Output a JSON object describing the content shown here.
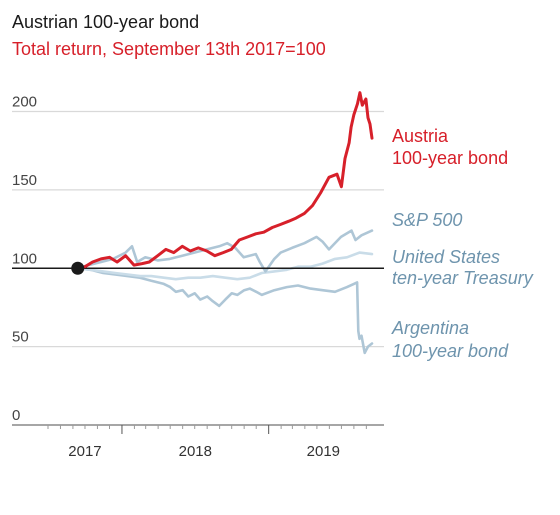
{
  "chart_data": {
    "type": "line",
    "title": "Austrian 100-year bond",
    "subtitle": "Total return, September 13th 2017=100",
    "xlabel": "",
    "ylabel": "",
    "x_ticks": [
      "2017",
      "2018",
      "2019"
    ],
    "y_ticks": [
      0,
      50,
      100,
      150,
      200
    ],
    "ylim": [
      0,
      215
    ],
    "xlim": [
      "2017-07-01",
      "2019-09-30"
    ],
    "baseline": 100,
    "grid": true,
    "legend": "direct labels at right",
    "colors": {
      "austria": "#d7202a",
      "others": "#aec6d6",
      "treasury": "#c9dce8",
      "label_blue": "#6e94ad",
      "baseline": "#1a1a1a",
      "grid": "#d9d9d9"
    },
    "series": [
      {
        "name": "Austria",
        "name2": "100-year bond",
        "key": "austria",
        "x": [
          "2017-09-13",
          "2017-10-01",
          "2017-10-20",
          "2017-11-10",
          "2017-12-01",
          "2017-12-20",
          "2018-01-10",
          "2018-01-31",
          "2018-02-20",
          "2018-03-10",
          "2018-03-31",
          "2018-04-20",
          "2018-05-10",
          "2018-05-31",
          "2018-06-20",
          "2018-07-10",
          "2018-07-31",
          "2018-08-20",
          "2018-09-10",
          "2018-09-30",
          "2018-10-20",
          "2018-11-10",
          "2018-11-30",
          "2018-12-20",
          "2019-01-10",
          "2019-01-31",
          "2019-02-20",
          "2019-03-10",
          "2019-03-31",
          "2019-04-20",
          "2019-05-10",
          "2019-05-31",
          "2019-06-20",
          "2019-07-01",
          "2019-07-10",
          "2019-07-20",
          "2019-07-25",
          "2019-08-01",
          "2019-08-10",
          "2019-08-16",
          "2019-08-22",
          "2019-08-31",
          "2019-09-05",
          "2019-09-10",
          "2019-09-15"
        ],
        "values": [
          100,
          101,
          104,
          106,
          107,
          104,
          108,
          102,
          103,
          104,
          108,
          112,
          110,
          114,
          111,
          113,
          111,
          108,
          110,
          112,
          118,
          120,
          122,
          123,
          126,
          128,
          130,
          132,
          135,
          140,
          148,
          158,
          160,
          152,
          170,
          180,
          190,
          198,
          205,
          212,
          204,
          208,
          196,
          192,
          183
        ]
      },
      {
        "name": "S&P 500",
        "key": "sp500",
        "x": [
          "2017-09-13",
          "2017-10-10",
          "2017-11-10",
          "2017-12-10",
          "2018-01-10",
          "2018-01-26",
          "2018-02-08",
          "2018-02-28",
          "2018-03-31",
          "2018-04-30",
          "2018-05-31",
          "2018-06-30",
          "2018-07-31",
          "2018-08-31",
          "2018-09-20",
          "2018-10-10",
          "2018-10-31",
          "2018-11-30",
          "2018-12-10",
          "2018-12-24",
          "2019-01-15",
          "2019-01-31",
          "2019-02-28",
          "2019-03-31",
          "2019-04-30",
          "2019-05-15",
          "2019-05-31",
          "2019-06-30",
          "2019-07-26",
          "2019-08-05",
          "2019-08-20",
          "2019-09-15"
        ],
        "values": [
          100,
          102,
          104,
          106,
          110,
          114,
          104,
          107,
          105,
          106,
          108,
          110,
          112,
          114,
          116,
          113,
          107,
          109,
          104,
          98,
          106,
          110,
          113,
          116,
          120,
          117,
          112,
          120,
          124,
          118,
          121,
          124
        ]
      },
      {
        "name": "United States",
        "name2": "ten-year Treasury",
        "key": "treasury",
        "x": [
          "2017-09-13",
          "2017-10-15",
          "2017-11-15",
          "2017-12-15",
          "2018-01-15",
          "2018-02-15",
          "2018-03-15",
          "2018-04-15",
          "2018-05-15",
          "2018-06-15",
          "2018-07-15",
          "2018-08-15",
          "2018-09-15",
          "2018-10-15",
          "2018-11-15",
          "2018-12-15",
          "2019-01-15",
          "2019-02-15",
          "2019-03-15",
          "2019-04-15",
          "2019-05-15",
          "2019-06-15",
          "2019-07-15",
          "2019-08-15",
          "2019-09-15"
        ],
        "values": [
          100,
          99,
          98,
          97,
          96,
          95,
          95,
          94,
          93,
          94,
          94,
          95,
          94,
          93,
          94,
          97,
          98,
          99,
          101,
          101,
          103,
          106,
          107,
          110,
          109
        ]
      },
      {
        "name": "Argentina",
        "name2": "100-year bond",
        "key": "argentina",
        "x": [
          "2017-09-13",
          "2017-10-15",
          "2017-11-15",
          "2017-12-15",
          "2018-01-15",
          "2018-02-15",
          "2018-03-15",
          "2018-04-15",
          "2018-05-01",
          "2018-05-15",
          "2018-06-01",
          "2018-06-15",
          "2018-07-01",
          "2018-07-15",
          "2018-08-01",
          "2018-08-15",
          "2018-08-31",
          "2018-09-15",
          "2018-10-01",
          "2018-10-15",
          "2018-11-01",
          "2018-11-15",
          "2018-12-01",
          "2018-12-15",
          "2019-01-15",
          "2019-02-15",
          "2019-03-15",
          "2019-04-15",
          "2019-05-15",
          "2019-06-15",
          "2019-07-15",
          "2019-08-01",
          "2019-08-09",
          "2019-08-12",
          "2019-08-15",
          "2019-08-20",
          "2019-08-28",
          "2019-09-01",
          "2019-09-05",
          "2019-09-15"
        ],
        "values": [
          100,
          99,
          97,
          96,
          95,
          94,
          92,
          90,
          88,
          85,
          86,
          82,
          84,
          80,
          82,
          79,
          76,
          80,
          84,
          83,
          86,
          87,
          85,
          83,
          86,
          88,
          89,
          87,
          86,
          85,
          88,
          90,
          91,
          60,
          55,
          57,
          46,
          48,
          50,
          52
        ]
      }
    ]
  }
}
